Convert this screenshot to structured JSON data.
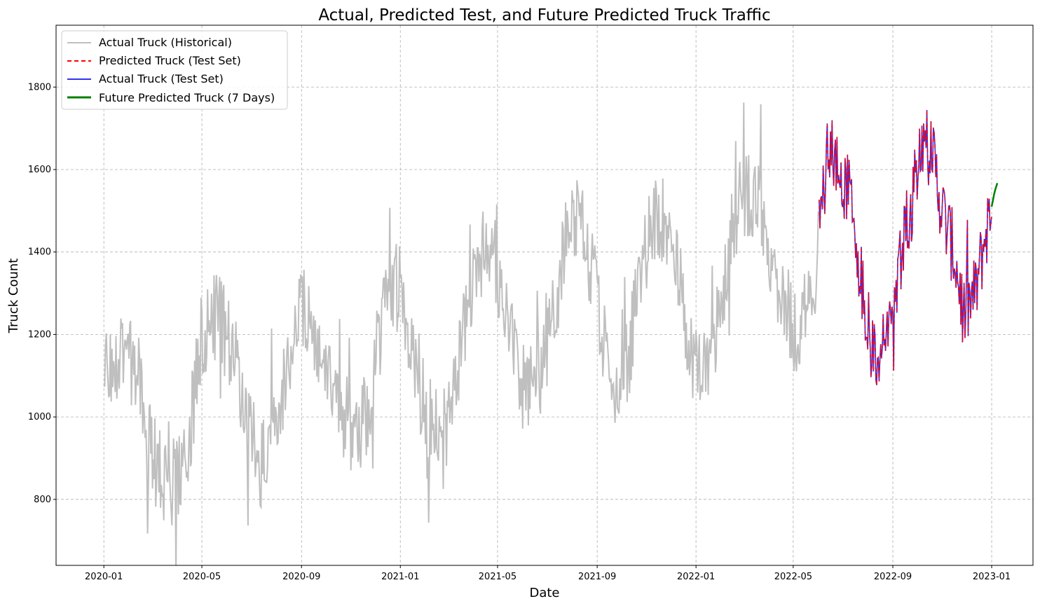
{
  "chart_data": {
    "type": "line",
    "title": "Actual, Predicted Test, and Future Predicted Truck Traffic",
    "xlabel": "Date",
    "ylabel": "Truck Count",
    "xlim": [
      "2019-11-03",
      "2023-02-21"
    ],
    "ylim": [
      640,
      1950
    ],
    "x_ticks": [
      "2020-01",
      "2020-05",
      "2020-09",
      "2021-01",
      "2021-05",
      "2021-09",
      "2022-01",
      "2022-05",
      "2022-09",
      "2023-01"
    ],
    "x_tick_dates": [
      "2020-01-01",
      "2020-05-01",
      "2020-09-01",
      "2021-01-01",
      "2021-05-01",
      "2021-09-01",
      "2022-01-01",
      "2022-05-01",
      "2022-09-01",
      "2023-01-01"
    ],
    "y_ticks": [
      800,
      1000,
      1200,
      1400,
      1600,
      1800
    ],
    "grid": true,
    "legend_position": "top-left",
    "colors": {
      "historical": "#bfbfbf",
      "predicted_test": "#ff0000",
      "actual_test": "#3333ee",
      "future": "#008000"
    },
    "series": [
      {
        "name": "Actual Truck (Historical)",
        "start": "2020-01-01",
        "end": "2022-06-01",
        "anchors": [
          [
            "2020-01-01",
            1110
          ],
          [
            "2020-01-20",
            1150
          ],
          [
            "2020-02-10",
            1120
          ],
          [
            "2020-03-01",
            900
          ],
          [
            "2020-03-20",
            840
          ],
          [
            "2020-04-05",
            860
          ],
          [
            "2020-04-20",
            1020
          ],
          [
            "2020-05-01",
            1200
          ],
          [
            "2020-05-20",
            1250
          ],
          [
            "2020-06-10",
            1150
          ],
          [
            "2020-06-25",
            980
          ],
          [
            "2020-07-15",
            880
          ],
          [
            "2020-08-01",
            1000
          ],
          [
            "2020-08-20",
            1180
          ],
          [
            "2020-09-05",
            1270
          ],
          [
            "2020-09-20",
            1150
          ],
          [
            "2020-10-10",
            1060
          ],
          [
            "2020-10-25",
            960
          ],
          [
            "2020-11-10",
            940
          ],
          [
            "2020-11-25",
            1050
          ],
          [
            "2020-12-10",
            1250
          ],
          [
            "2021-01-01",
            1330
          ],
          [
            "2021-01-15",
            1130
          ],
          [
            "2021-02-05",
            1000
          ],
          [
            "2021-02-25",
            960
          ],
          [
            "2021-03-15",
            1150
          ],
          [
            "2021-04-05",
            1400
          ],
          [
            "2021-04-25",
            1400
          ],
          [
            "2021-05-10",
            1250
          ],
          [
            "2021-06-01",
            1080
          ],
          [
            "2021-06-20",
            1080
          ],
          [
            "2021-07-10",
            1250
          ],
          [
            "2021-07-25",
            1450
          ],
          [
            "2021-08-10",
            1480
          ],
          [
            "2021-08-25",
            1370
          ],
          [
            "2021-09-10",
            1180
          ],
          [
            "2021-09-25",
            1080
          ],
          [
            "2021-10-10",
            1150
          ],
          [
            "2021-10-25",
            1350
          ],
          [
            "2021-11-10",
            1480
          ],
          [
            "2021-11-25",
            1480
          ],
          [
            "2021-12-10",
            1350
          ],
          [
            "2021-12-25",
            1150
          ],
          [
            "2022-01-10",
            1120
          ],
          [
            "2022-01-25",
            1200
          ],
          [
            "2022-02-10",
            1400
          ],
          [
            "2022-03-01",
            1550
          ],
          [
            "2022-03-20",
            1520
          ],
          [
            "2022-04-05",
            1380
          ],
          [
            "2022-04-20",
            1280
          ],
          [
            "2022-05-05",
            1200
          ],
          [
            "2022-05-20",
            1260
          ],
          [
            "2022-06-01",
            1400
          ]
        ],
        "noise_amplitude": 110
      },
      {
        "name": "Predicted Truck (Test Set)",
        "start": "2022-06-02",
        "end": "2023-01-01"
      },
      {
        "name": "Actual Truck (Test Set)",
        "start": "2022-06-02",
        "end": "2023-01-01",
        "anchors": [
          [
            "2022-06-02",
            1450
          ],
          [
            "2022-06-12",
            1640
          ],
          [
            "2022-06-25",
            1610
          ],
          [
            "2022-07-10",
            1540
          ],
          [
            "2022-07-25",
            1330
          ],
          [
            "2022-08-08",
            1130
          ],
          [
            "2022-08-25",
            1200
          ],
          [
            "2022-09-10",
            1360
          ],
          [
            "2022-09-25",
            1530
          ],
          [
            "2022-10-05",
            1680
          ],
          [
            "2022-10-20",
            1640
          ],
          [
            "2022-11-01",
            1500
          ],
          [
            "2022-11-15",
            1400
          ],
          [
            "2022-11-28",
            1250
          ],
          [
            "2022-12-12",
            1300
          ],
          [
            "2022-12-25",
            1450
          ],
          [
            "2023-01-01",
            1500
          ]
        ],
        "noise_amplitude": 95
      },
      {
        "name": "Future Predicted Truck (7 Days)",
        "dates": [
          "2023-01-01",
          "2023-01-02",
          "2023-01-03",
          "2023-01-04",
          "2023-01-05",
          "2023-01-06",
          "2023-01-07",
          "2023-01-08"
        ],
        "values": [
          1510,
          1520,
          1530,
          1540,
          1548,
          1555,
          1561,
          1567
        ]
      }
    ]
  }
}
